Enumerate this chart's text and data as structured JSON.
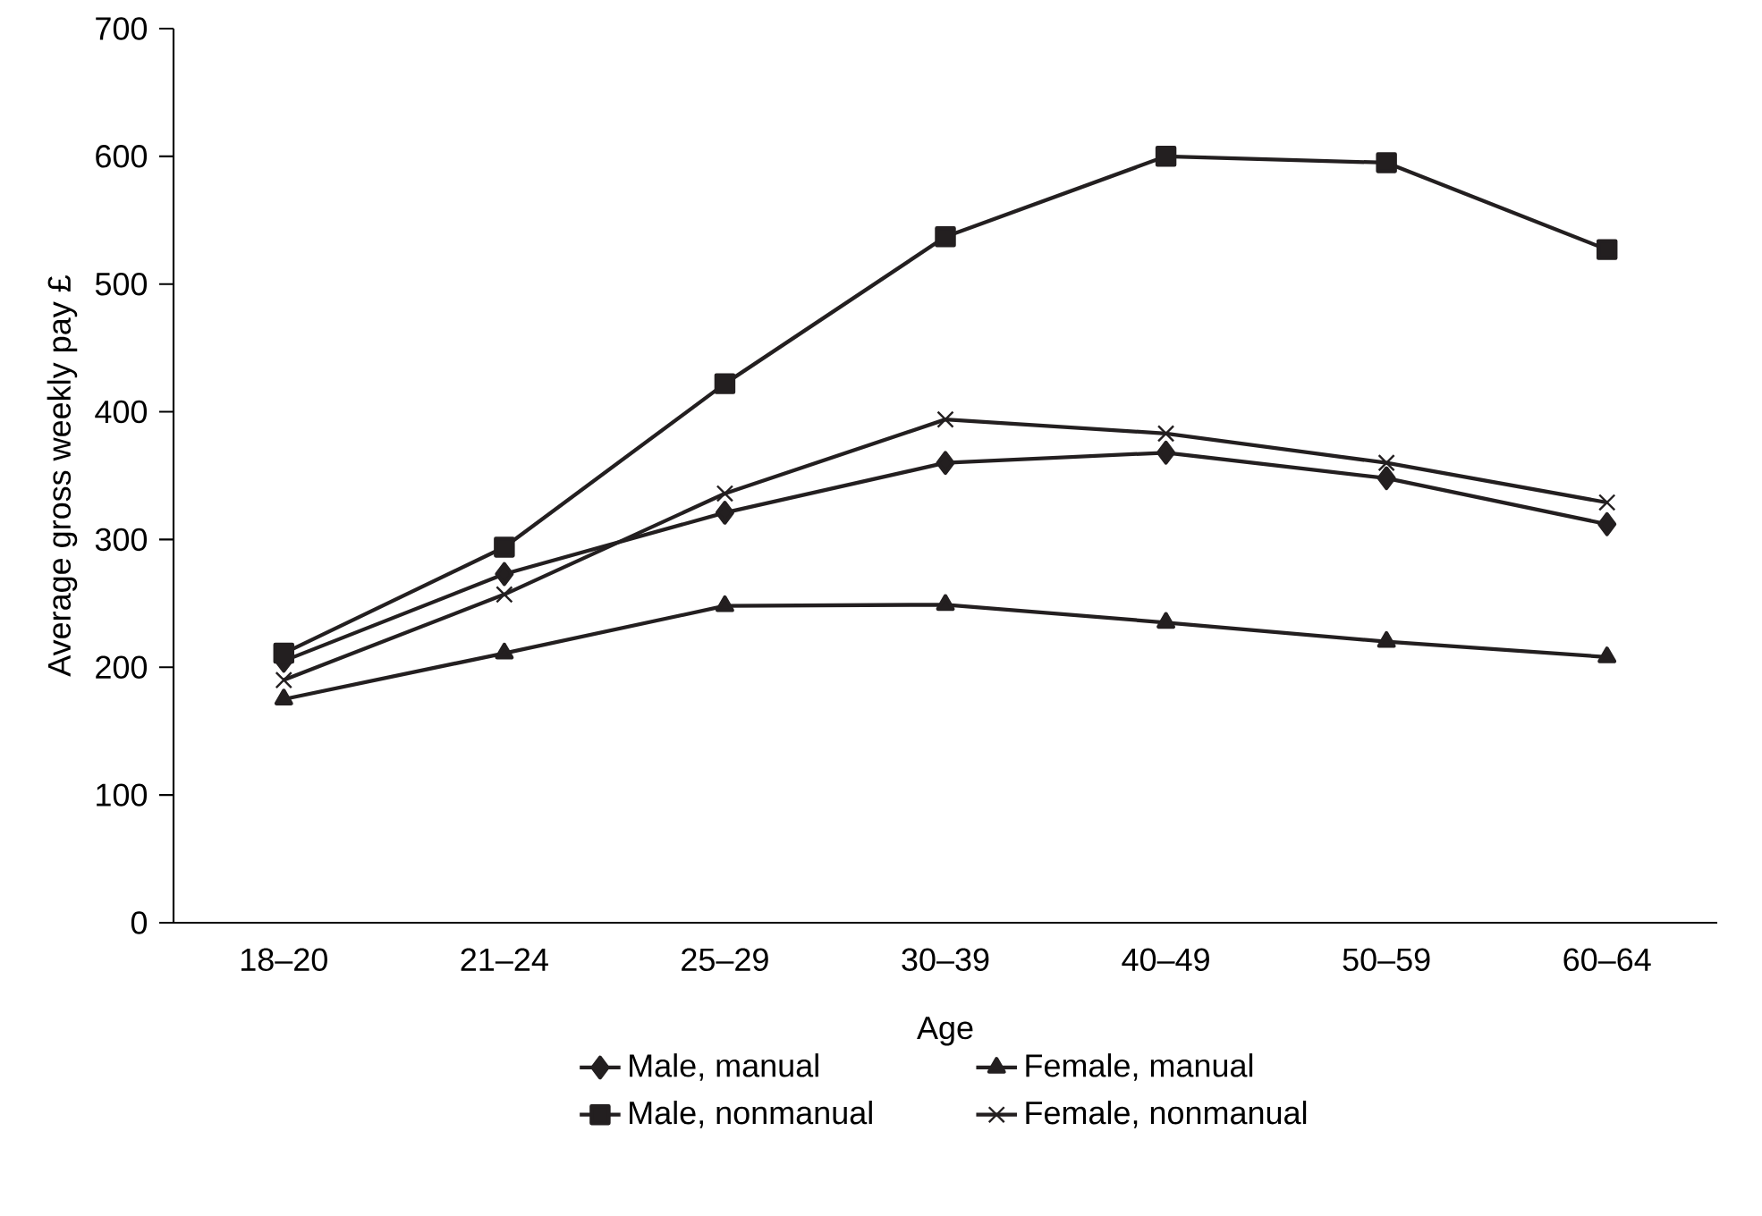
{
  "chart_data": {
    "type": "line",
    "xlabel": "Age",
    "ylabel": "Average gross weekly pay £",
    "categories": [
      "18–20",
      "21–24",
      "25–29",
      "30–39",
      "40–49",
      "50–59",
      "60–64"
    ],
    "ylim": [
      0,
      700
    ],
    "yticks": [
      0,
      100,
      200,
      300,
      400,
      500,
      600,
      700
    ],
    "grid": false,
    "legend": "bottom",
    "line_style": "solid",
    "series": [
      {
        "name": "Male, manual",
        "color": "#231f20",
        "marker": "diamond",
        "values": [
          205,
          273,
          321,
          360,
          368,
          348,
          312
        ]
      },
      {
        "name": "Female, manual",
        "color": "#231f20",
        "marker": "triangle",
        "values": [
          175,
          211,
          248,
          249,
          235,
          220,
          208
        ]
      },
      {
        "name": "Male, nonmanual",
        "color": "#231f20",
        "marker": "square",
        "values": [
          211,
          294,
          422,
          537,
          600,
          595,
          527
        ]
      },
      {
        "name": "Female, nonmanual",
        "color": "#231f20",
        "marker": "cross",
        "values": [
          190,
          257,
          336,
          394,
          383,
          360,
          329
        ]
      }
    ]
  }
}
